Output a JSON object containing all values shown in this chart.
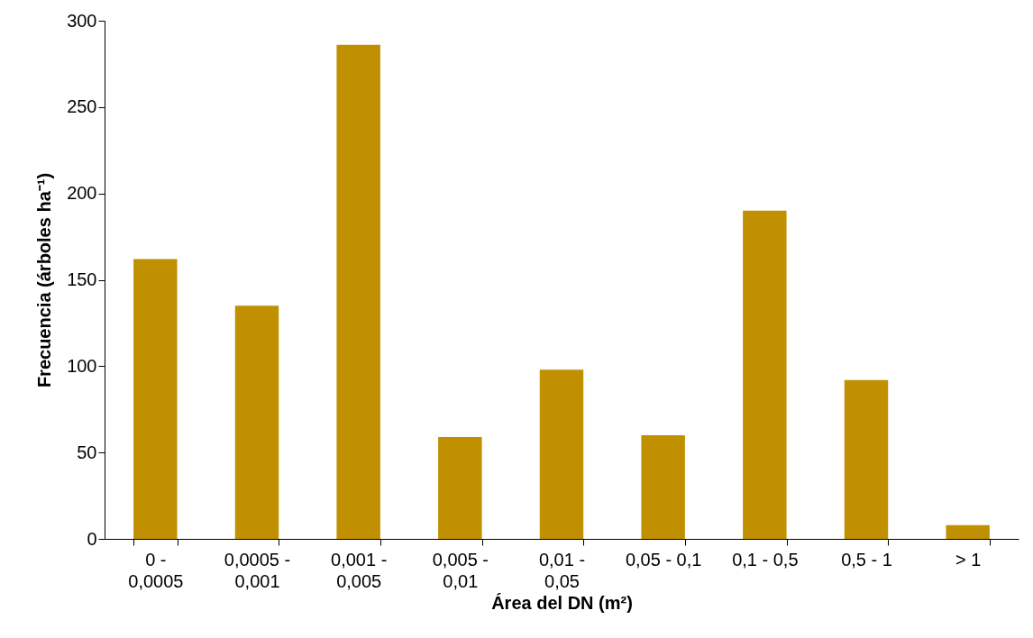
{
  "chart_data": {
    "type": "bar",
    "xlabel": "Área del DN (m²)",
    "ylabel": "Frecuencia (árboles ha⁻¹)",
    "categories": [
      "0 -\n0,0005",
      "0,0005 -\n0,001",
      "0,001 -\n0,005",
      "0,005 -\n0,01",
      "0,01 -\n0,05",
      "0,05 - 0,1",
      "0,1 - 0,5",
      "0,5 - 1",
      "> 1"
    ],
    "values": [
      162,
      135,
      286,
      59,
      98,
      60,
      190,
      92,
      8
    ],
    "color": "#c09000",
    "ylim": [
      0,
      300
    ],
    "yticks": [
      0,
      50,
      100,
      150,
      200,
      250,
      300
    ],
    "grid": false
  }
}
